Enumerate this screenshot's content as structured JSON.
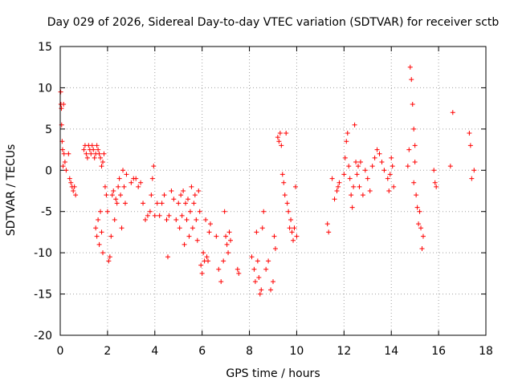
{
  "chart_data": {
    "type": "scatter",
    "title": "Day 029 of 2026, Sidereal Day-to-day VTEC variation (SDTVAR) for receiver sctb",
    "xlabel": "GPS time / hours",
    "ylabel": "SDTVAR / TECUs",
    "xlim": [
      0,
      18
    ],
    "ylim": [
      -20,
      15
    ],
    "xticks": [
      0,
      2,
      4,
      6,
      8,
      10,
      12,
      14,
      16,
      18
    ],
    "yticks": [
      -20,
      -15,
      -10,
      -5,
      0,
      5,
      10,
      15
    ],
    "xtick_labels": [
      "0",
      "2",
      "4",
      "6",
      "8",
      "10",
      "12",
      "14",
      "16",
      "18"
    ],
    "ytick_labels": [
      "-20",
      "-15",
      "-10",
      "-5",
      "0",
      "5",
      "10",
      "15"
    ],
    "grid": true,
    "marker": "+",
    "color": "#ff0000",
    "series": [
      {
        "name": "SDTVAR",
        "x": [
          0.02,
          0.03,
          0.05,
          0.06,
          0.08,
          0.1,
          0.12,
          0.14,
          0.16,
          0.2,
          0.25,
          0.35,
          0.4,
          0.45,
          0.5,
          0.55,
          0.6,
          0.65,
          1.0,
          1.05,
          1.1,
          1.15,
          1.2,
          1.25,
          1.3,
          1.35,
          1.4,
          1.45,
          1.5,
          1.55,
          1.6,
          1.65,
          1.7,
          1.75,
          1.8,
          1.85,
          1.5,
          1.55,
          1.6,
          1.65,
          1.7,
          1.75,
          1.8,
          1.9,
          1.95,
          2.0,
          2.05,
          2.1,
          2.15,
          2.2,
          2.25,
          2.3,
          2.35,
          2.4,
          2.45,
          2.5,
          2.55,
          2.6,
          2.65,
          2.7,
          2.75,
          2.8,
          3.0,
          3.1,
          3.2,
          3.3,
          3.4,
          3.5,
          3.6,
          3.7,
          3.8,
          3.85,
          3.9,
          3.95,
          4.0,
          4.1,
          4.2,
          4.3,
          4.4,
          4.5,
          4.55,
          4.6,
          4.7,
          4.8,
          4.9,
          5.0,
          5.05,
          5.1,
          5.15,
          5.2,
          5.25,
          5.3,
          5.35,
          5.4,
          5.45,
          5.5,
          5.55,
          5.6,
          5.65,
          5.7,
          5.75,
          5.8,
          5.85,
          5.9,
          5.95,
          6.0,
          6.05,
          6.1,
          6.15,
          6.2,
          6.25,
          6.3,
          6.35,
          6.6,
          6.7,
          6.8,
          6.9,
          6.95,
          7.0,
          7.05,
          7.1,
          7.15,
          7.2,
          7.5,
          7.55,
          8.1,
          8.2,
          8.25,
          8.3,
          8.35,
          8.4,
          8.45,
          8.5,
          8.55,
          8.6,
          8.7,
          8.8,
          8.9,
          9.0,
          9.05,
          9.1,
          9.2,
          9.25,
          9.3,
          9.35,
          9.4,
          9.45,
          9.5,
          9.55,
          9.6,
          9.65,
          9.7,
          9.75,
          9.8,
          9.85,
          9.9,
          9.95,
          10.0,
          11.3,
          11.35,
          11.5,
          11.6,
          11.7,
          11.75,
          11.8,
          12.0,
          12.05,
          12.1,
          12.15,
          12.2,
          12.25,
          12.3,
          12.35,
          12.4,
          12.45,
          12.5,
          12.55,
          12.6,
          12.65,
          12.7,
          12.8,
          12.9,
          13.0,
          13.1,
          13.2,
          13.3,
          13.4,
          13.5,
          13.6,
          13.7,
          13.85,
          13.9,
          13.95,
          14.0,
          14.05,
          14.1,
          14.7,
          14.75,
          14.8,
          14.85,
          14.9,
          14.95,
          14.95,
          15.0,
          15.0,
          15.05,
          15.1,
          15.15,
          15.2,
          15.25,
          15.3,
          15.35,
          15.8,
          15.85,
          15.9,
          16.5,
          16.6,
          17.3,
          17.35,
          17.4,
          17.5
        ],
        "y": [
          9.5,
          8.0,
          7.5,
          5.5,
          3.5,
          2.5,
          0.5,
          8.0,
          2.0,
          1.0,
          0.0,
          2.0,
          -1.0,
          -1.5,
          -2.0,
          -2.5,
          -2.0,
          -3.0,
          2.5,
          3.0,
          2.0,
          1.5,
          3.0,
          2.5,
          2.0,
          3.0,
          2.5,
          1.5,
          2.0,
          3.0,
          2.5,
          2.0,
          1.5,
          0.5,
          1.0,
          2.0,
          -7.0,
          -8.0,
          -6.0,
          -9.0,
          -5.0,
          -7.5,
          -10.0,
          -2.0,
          -3.0,
          -5.0,
          -11.0,
          -10.5,
          -8.0,
          -3.0,
          -2.5,
          -6.0,
          -3.5,
          -4.0,
          -2.0,
          -1.0,
          -3.0,
          -7.0,
          0.0,
          -2.0,
          -4.0,
          -0.5,
          -1.5,
          -1.0,
          -1.0,
          -2.0,
          -1.5,
          -4.0,
          -6.0,
          -5.5,
          -5.0,
          -3.0,
          -1.0,
          0.5,
          -5.5,
          -4.0,
          -5.5,
          -4.0,
          -3.0,
          -6.0,
          -10.5,
          -5.5,
          -2.5,
          -3.5,
          -6.0,
          -4.0,
          -7.0,
          -3.0,
          -5.5,
          -2.5,
          -9.0,
          -4.0,
          -6.0,
          -3.5,
          -8.0,
          -5.0,
          -2.0,
          -7.0,
          -4.0,
          -3.0,
          -6.0,
          -8.5,
          -2.5,
          -5.0,
          -11.5,
          -12.5,
          -10.0,
          -11.0,
          -6.0,
          -10.5,
          -11.0,
          -7.5,
          -6.5,
          -8.0,
          -12.0,
          -13.5,
          -11.0,
          -5.0,
          -8.0,
          -9.0,
          -10.0,
          -7.5,
          -8.5,
          -12.0,
          -12.5,
          -10.5,
          -12.0,
          -13.5,
          -7.5,
          -11.0,
          -13.0,
          -15.0,
          -14.5,
          -7.0,
          -5.0,
          -12.0,
          -11.0,
          -14.5,
          -13.5,
          -8.0,
          -9.5,
          4.0,
          3.5,
          4.5,
          3.0,
          -0.5,
          -1.5,
          -3.0,
          4.5,
          -4.0,
          -5.0,
          -7.0,
          -6.0,
          -7.5,
          -8.5,
          -7.0,
          -2.0,
          -8.0,
          -6.5,
          -7.5,
          -1.0,
          -3.5,
          -2.5,
          -2.0,
          -1.5,
          -0.5,
          1.5,
          3.5,
          4.5,
          0.5,
          -1.0,
          -3.0,
          -4.5,
          -2.0,
          5.5,
          1.0,
          -0.5,
          0.5,
          -2.0,
          1.0,
          -3.0,
          0.0,
          -1.0,
          -2.5,
          0.5,
          1.5,
          2.5,
          2.0,
          1.0,
          0.0,
          -1.0,
          -2.5,
          -0.5,
          1.5,
          0.5,
          -2.0,
          0.5,
          2.5,
          12.5,
          11.0,
          8.0,
          5.0,
          -1.5,
          3.0,
          1.0,
          -3.0,
          -4.5,
          -6.5,
          -5.0,
          -7.0,
          -9.5,
          -8.0,
          0.0,
          -1.5,
          -2.0,
          0.5,
          7.0,
          4.5,
          3.0,
          -1.0,
          0.0
        ]
      }
    ]
  }
}
